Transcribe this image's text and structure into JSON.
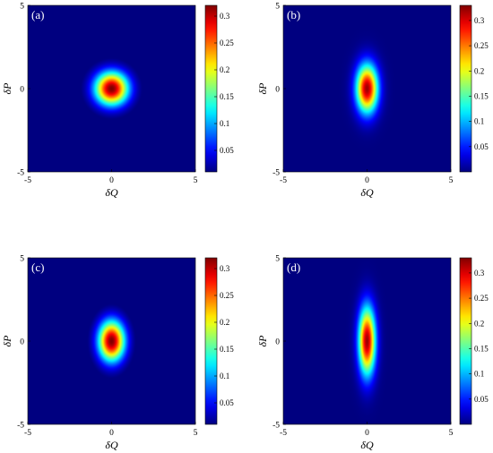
{
  "chart_data": [
    {
      "type": "heatmap",
      "panel_label": "(a)",
      "xlabel": "δQ",
      "ylabel": "δP",
      "xlim": [
        -5,
        5
      ],
      "ylim": [
        -5,
        5
      ],
      "xticks": [
        "-5",
        "0",
        "5"
      ],
      "yticks": [
        "-5",
        "0",
        "5"
      ],
      "center": [
        0,
        0
      ],
      "sigma_q": 0.7,
      "sigma_p": 0.7,
      "peak": 0.32,
      "colorbar": {
        "min": 0.01,
        "max": 0.32,
        "ticks": [
          "0.05",
          "0.1",
          "0.15",
          "0.2",
          "0.25",
          "0.3"
        ],
        "colormap": "jet"
      }
    },
    {
      "type": "heatmap",
      "panel_label": "(b)",
      "xlabel": "δQ",
      "ylabel": "δP",
      "xlim": [
        -5,
        5
      ],
      "ylim": [
        -5,
        5
      ],
      "xticks": [
        "-5",
        "0",
        "5"
      ],
      "yticks": [
        "-5",
        "0",
        "5"
      ],
      "center": [
        0,
        0
      ],
      "sigma_q": 0.45,
      "sigma_p": 1.0,
      "peak": 0.32,
      "colorbar": {
        "min": 0.0,
        "max": 0.33,
        "ticks": [
          "0.05",
          "0.1",
          "0.15",
          "0.2",
          "0.25",
          "0.3"
        ],
        "colormap": "jet"
      }
    },
    {
      "type": "heatmap",
      "panel_label": "(c)",
      "xlabel": "δQ",
      "ylabel": "δP",
      "xlim": [
        -5,
        5
      ],
      "ylim": [
        -5,
        5
      ],
      "xticks": [
        "-5",
        "0",
        "5"
      ],
      "yticks": [
        "-5",
        "0",
        "5"
      ],
      "center": [
        0,
        0
      ],
      "sigma_q": 0.55,
      "sigma_p": 0.85,
      "peak": 0.32,
      "colorbar": {
        "min": 0.01,
        "max": 0.32,
        "ticks": [
          "0.05",
          "0.1",
          "0.15",
          "0.2",
          "0.25",
          "0.3"
        ],
        "colormap": "jet"
      }
    },
    {
      "type": "heatmap",
      "panel_label": "(d)",
      "xlabel": "δQ",
      "ylabel": "δP",
      "xlim": [
        -5,
        5
      ],
      "ylim": [
        -5,
        5
      ],
      "xticks": [
        "-5",
        "0",
        "5"
      ],
      "yticks": [
        "-5",
        "0",
        "5"
      ],
      "center": [
        0,
        0
      ],
      "sigma_q": 0.35,
      "sigma_p": 1.4,
      "peak": 0.32,
      "colorbar": {
        "min": 0.0,
        "max": 0.33,
        "ticks": [
          "0.05",
          "0.1",
          "0.15",
          "0.2",
          "0.25",
          "0.3"
        ],
        "colormap": "jet"
      }
    }
  ]
}
